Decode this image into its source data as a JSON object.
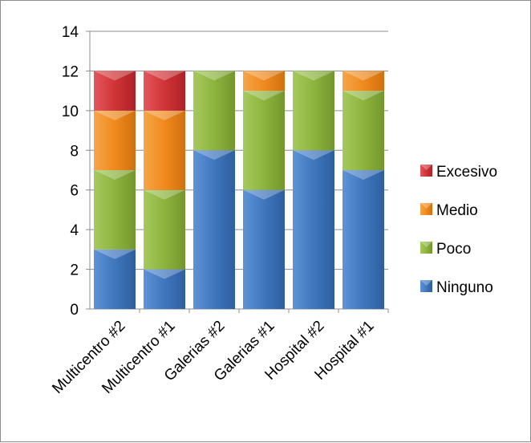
{
  "chart_data": {
    "type": "bar",
    "stacked": true,
    "categories": [
      "Multicentro #2",
      "Multicentro #1",
      "Galerias #2",
      "Galerias #1",
      "Hospital #2",
      "Hospital #1"
    ],
    "series": [
      {
        "name": "Ninguno",
        "color": "#3f76bd",
        "values": [
          3,
          2,
          8,
          6,
          8,
          7
        ]
      },
      {
        "name": "Poco",
        "color": "#8db43e",
        "values": [
          4,
          4,
          4,
          5,
          4,
          4
        ]
      },
      {
        "name": "Medio",
        "color": "#f08a1c",
        "values": [
          3,
          4,
          0,
          1,
          0,
          1
        ]
      },
      {
        "name": "Excesivo",
        "color": "#d13337",
        "values": [
          2,
          2,
          0,
          0,
          0,
          0
        ]
      }
    ],
    "yticks": [
      "0",
      "2",
      "4",
      "6",
      "8",
      "10",
      "12",
      "14"
    ],
    "ylim": [
      0,
      14
    ],
    "grid": true,
    "legend": "right"
  }
}
